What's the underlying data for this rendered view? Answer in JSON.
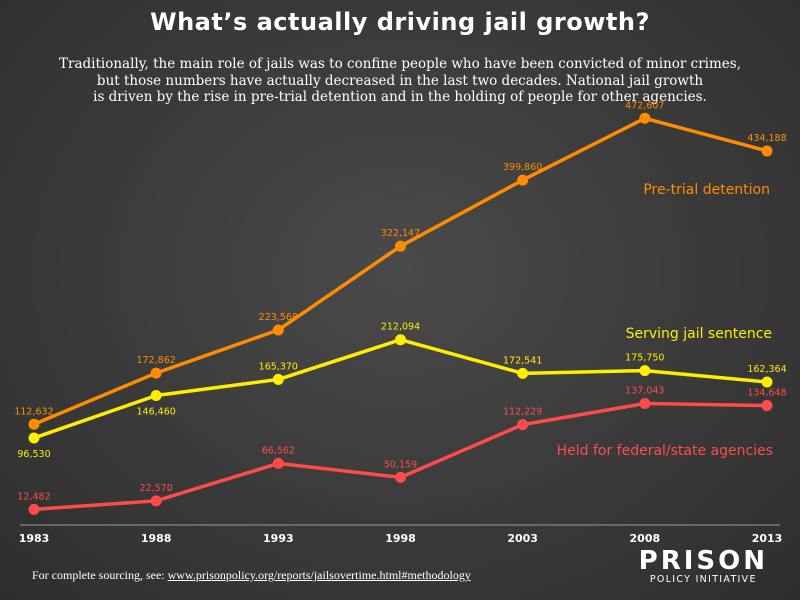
{
  "title": "What’s actually driving jail growth?",
  "subtitle_lines": [
    "Traditionally, the main role of jails was to confine people who have been convicted of minor crimes,",
    "but those numbers have actually decreased in the last two decades. National jail growth",
    "is driven by the rise in pre-trial detention and in the holding of people for other agencies."
  ],
  "footer": {
    "prefix": "For complete sourcing, see: ",
    "link_text": "www.prisonpolicy.org/reports/jailsovertime.html#methodology"
  },
  "logo": {
    "top": "PRISON",
    "bottom": "POLICY INITIATIVE"
  },
  "chart_data": {
    "type": "line",
    "x": [
      1983,
      1988,
      1993,
      1998,
      2003,
      2008,
      2013
    ],
    "series": [
      {
        "name": "Pre-trial detention",
        "color": "#ff8c00",
        "values": [
          112632,
          172862,
          223568,
          322147,
          399860,
          472607,
          434188
        ],
        "labels": [
          "112,632",
          "172,862",
          "223,568",
          "322,147",
          "399,860",
          "472,607",
          "434,188"
        ]
      },
      {
        "name": "Serving jail sentence",
        "color": "#ffee00",
        "values": [
          96530,
          146460,
          165370,
          212094,
          172541,
          175750,
          162364
        ],
        "labels": [
          "96,530",
          "146,460",
          "165,370",
          "212,094",
          "172,541",
          "175,750",
          "162,364"
        ]
      },
      {
        "name": "Held for federal/state agencies",
        "color": "#ff4b4b",
        "values": [
          12482,
          22570,
          66562,
          50159,
          112229,
          137043,
          134648
        ],
        "labels": [
          "12,482",
          "22,570",
          "66,562",
          "50,159",
          "112,229",
          "137,043",
          "134,648"
        ]
      }
    ],
    "x_tick_labels": [
      "1983",
      "1988",
      "1993",
      "1998",
      "2003",
      "2008",
      "2013"
    ],
    "ylim": [
      0,
      500000
    ],
    "grid": false,
    "legend": "inline-labels"
  }
}
